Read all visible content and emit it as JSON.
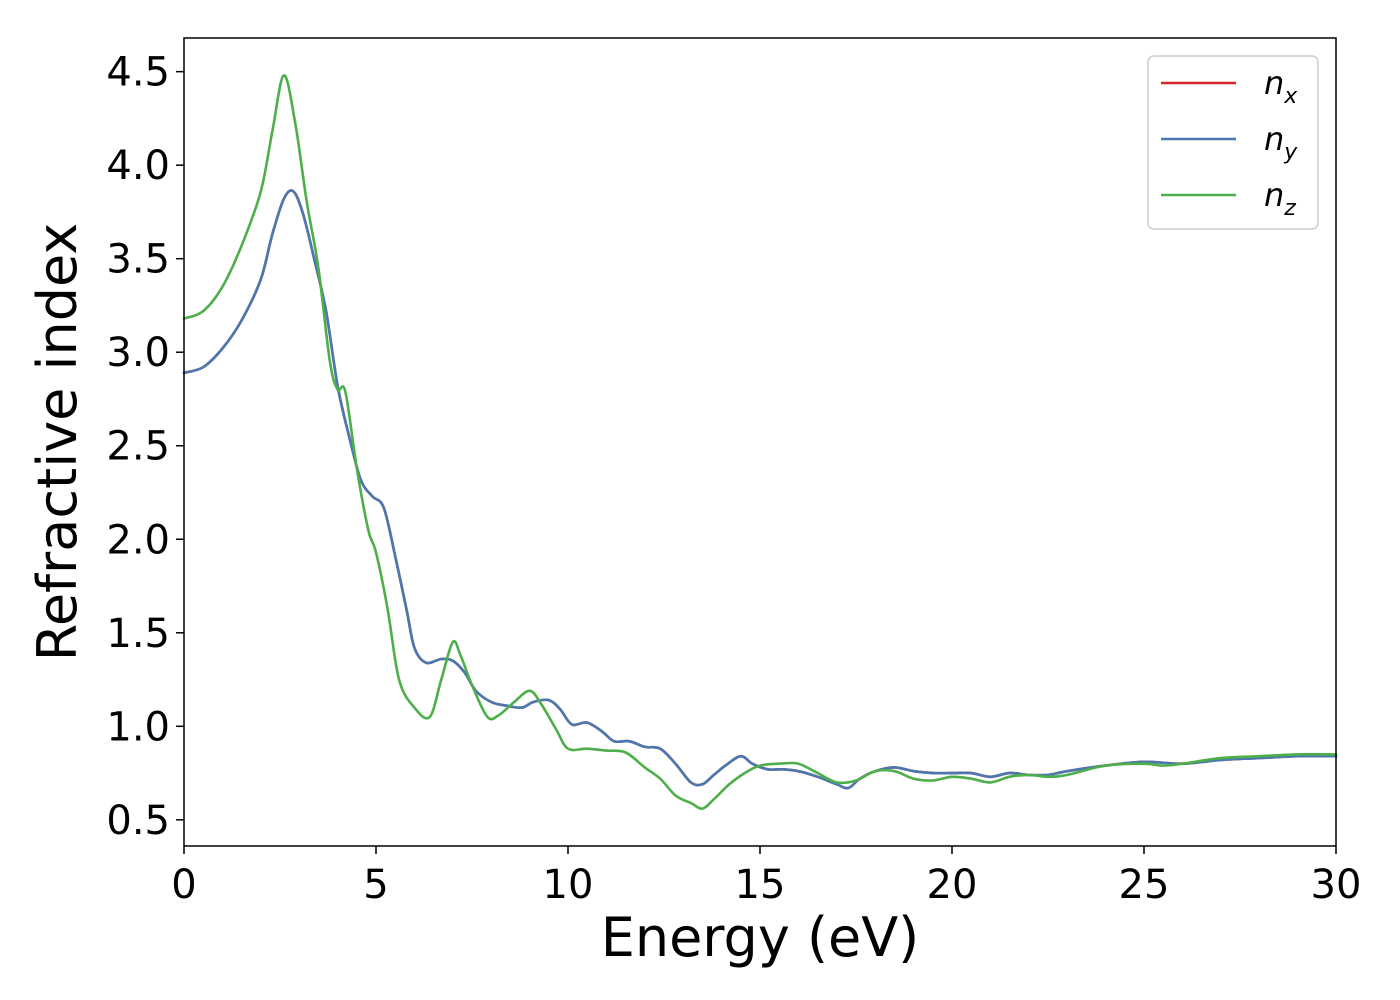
{
  "chart_data": {
    "type": "line",
    "xlabel": "Energy (eV)",
    "ylabel": "Refractive index",
    "xlim": [
      0,
      30
    ],
    "ylim": [
      0.36,
      4.68
    ],
    "xticks": [
      0,
      5,
      10,
      15,
      20,
      25,
      30
    ],
    "yticks": [
      0.5,
      1.0,
      1.5,
      2.0,
      2.5,
      3.0,
      3.5,
      4.0,
      4.5
    ],
    "xtick_labels": [
      "0",
      "5",
      "10",
      "15",
      "20",
      "25",
      "30"
    ],
    "ytick_labels": [
      "0.5",
      "1.0",
      "1.5",
      "2.0",
      "2.5",
      "3.0",
      "3.5",
      "4.0",
      "4.5"
    ],
    "grid": false,
    "legend_position": "top-right",
    "series": [
      {
        "name": "n",
        "sub": "x",
        "color": "#d62728",
        "x": [
          0,
          0.5,
          1.0,
          1.5,
          2.0,
          2.3,
          2.6,
          2.85,
          3.1,
          3.4,
          3.7,
          4.0,
          4.3,
          4.6,
          4.9,
          5.2,
          5.5,
          5.8,
          6.0,
          6.3,
          6.7,
          7.0,
          7.3,
          7.6,
          8.0,
          8.4,
          8.8,
          9.1,
          9.5,
          9.8,
          10.1,
          10.5,
          10.9,
          11.2,
          11.6,
          12.0,
          12.4,
          12.8,
          13.2,
          13.5,
          13.8,
          14.1,
          14.5,
          14.8,
          15.2,
          15.6,
          16.0,
          16.5,
          17.0,
          17.3,
          17.6,
          18.0,
          18.5,
          19.0,
          19.5,
          20.0,
          20.5,
          21.0,
          21.5,
          22.0,
          22.5,
          23.0,
          24.0,
          25.0,
          26.0,
          27.0,
          28.0,
          29.0,
          30.0
        ],
        "y": [
          2.89,
          2.92,
          3.02,
          3.17,
          3.39,
          3.63,
          3.82,
          3.86,
          3.74,
          3.49,
          3.22,
          2.82,
          2.55,
          2.32,
          2.23,
          2.17,
          1.91,
          1.62,
          1.42,
          1.34,
          1.36,
          1.35,
          1.29,
          1.19,
          1.13,
          1.11,
          1.1,
          1.13,
          1.14,
          1.09,
          1.01,
          1.02,
          0.97,
          0.92,
          0.92,
          0.89,
          0.88,
          0.8,
          0.7,
          0.69,
          0.74,
          0.79,
          0.84,
          0.8,
          0.77,
          0.77,
          0.76,
          0.73,
          0.69,
          0.67,
          0.72,
          0.76,
          0.78,
          0.76,
          0.75,
          0.75,
          0.75,
          0.73,
          0.75,
          0.74,
          0.74,
          0.76,
          0.79,
          0.81,
          0.8,
          0.82,
          0.83,
          0.84,
          0.84
        ]
      },
      {
        "name": "n",
        "sub": "y",
        "color": "#4a78b0",
        "x": [
          0,
          0.5,
          1.0,
          1.5,
          2.0,
          2.3,
          2.6,
          2.85,
          3.1,
          3.4,
          3.7,
          4.0,
          4.3,
          4.6,
          4.9,
          5.2,
          5.5,
          5.8,
          6.0,
          6.3,
          6.7,
          7.0,
          7.3,
          7.6,
          8.0,
          8.4,
          8.8,
          9.1,
          9.5,
          9.8,
          10.1,
          10.5,
          10.9,
          11.2,
          11.6,
          12.0,
          12.4,
          12.8,
          13.2,
          13.5,
          13.8,
          14.1,
          14.5,
          14.8,
          15.2,
          15.6,
          16.0,
          16.5,
          17.0,
          17.3,
          17.6,
          18.0,
          18.5,
          19.0,
          19.5,
          20.0,
          20.5,
          21.0,
          21.5,
          22.0,
          22.5,
          23.0,
          24.0,
          25.0,
          26.0,
          27.0,
          28.0,
          29.0,
          30.0
        ],
        "y": [
          2.89,
          2.92,
          3.02,
          3.17,
          3.39,
          3.63,
          3.82,
          3.86,
          3.74,
          3.49,
          3.22,
          2.82,
          2.55,
          2.32,
          2.23,
          2.17,
          1.91,
          1.62,
          1.42,
          1.34,
          1.36,
          1.35,
          1.29,
          1.19,
          1.13,
          1.11,
          1.1,
          1.13,
          1.14,
          1.09,
          1.01,
          1.02,
          0.97,
          0.92,
          0.92,
          0.89,
          0.88,
          0.8,
          0.7,
          0.69,
          0.74,
          0.79,
          0.84,
          0.8,
          0.77,
          0.77,
          0.76,
          0.73,
          0.69,
          0.67,
          0.72,
          0.76,
          0.78,
          0.76,
          0.75,
          0.75,
          0.75,
          0.73,
          0.75,
          0.74,
          0.74,
          0.76,
          0.79,
          0.81,
          0.8,
          0.82,
          0.83,
          0.84,
          0.84
        ]
      },
      {
        "name": "n",
        "sub": "z",
        "color": "#4daf4a",
        "x": [
          0,
          0.5,
          1.0,
          1.5,
          2.0,
          2.3,
          2.6,
          2.9,
          3.2,
          3.5,
          3.8,
          4.0,
          4.2,
          4.5,
          4.8,
          5.0,
          5.3,
          5.6,
          6.0,
          6.4,
          6.7,
          7.0,
          7.2,
          7.5,
          7.9,
          8.2,
          8.6,
          9.0,
          9.3,
          9.7,
          10.0,
          10.5,
          11.0,
          11.5,
          12.0,
          12.4,
          12.8,
          13.2,
          13.5,
          13.8,
          14.2,
          14.6,
          15.0,
          15.5,
          16.0,
          16.5,
          17.0,
          17.5,
          18.0,
          18.5,
          19.0,
          19.5,
          20.0,
          20.5,
          21.0,
          21.5,
          22.0,
          22.5,
          23.0,
          24.0,
          25.0,
          25.5,
          26.0,
          27.0,
          28.0,
          29.0,
          30.0
        ],
        "y": [
          3.18,
          3.22,
          3.35,
          3.57,
          3.86,
          4.18,
          4.48,
          4.22,
          3.8,
          3.45,
          2.95,
          2.8,
          2.79,
          2.38,
          2.05,
          1.93,
          1.63,
          1.25,
          1.1,
          1.05,
          1.25,
          1.45,
          1.38,
          1.22,
          1.05,
          1.06,
          1.13,
          1.19,
          1.12,
          0.98,
          0.88,
          0.88,
          0.87,
          0.86,
          0.78,
          0.72,
          0.63,
          0.59,
          0.56,
          0.61,
          0.69,
          0.75,
          0.79,
          0.8,
          0.8,
          0.75,
          0.7,
          0.71,
          0.76,
          0.76,
          0.72,
          0.71,
          0.73,
          0.72,
          0.7,
          0.73,
          0.74,
          0.73,
          0.74,
          0.79,
          0.8,
          0.79,
          0.8,
          0.83,
          0.84,
          0.85,
          0.85
        ]
      }
    ]
  }
}
